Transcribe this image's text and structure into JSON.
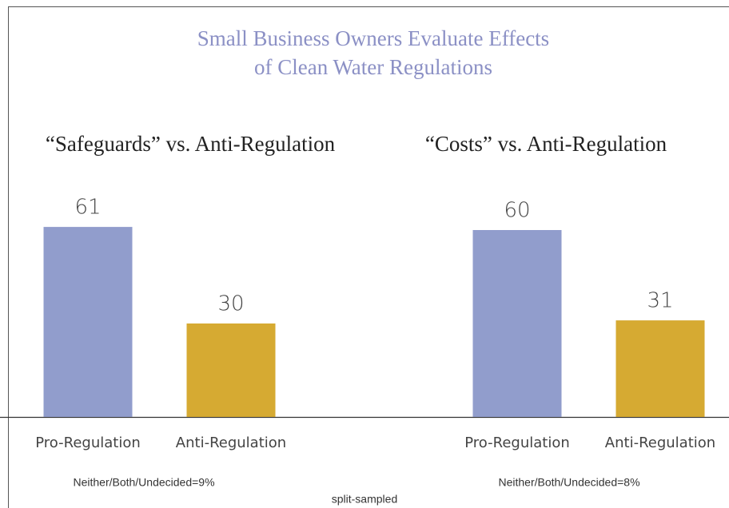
{
  "title": [
    "Small Business Owners Evaluate Effects",
    "of Clean Water Regulations"
  ],
  "footnote": "split-sampled",
  "chart_data": [
    {
      "type": "bar",
      "title": "“Safeguards” vs. Anti-Regulation",
      "categories": [
        "Pro-Regulation",
        "Anti-Regulation"
      ],
      "values": [
        61,
        30
      ],
      "colors": [
        "#919dcc",
        "#d6aa32"
      ],
      "ylim": [
        0,
        100
      ],
      "note": "Neither/Both/Undecided=9%"
    },
    {
      "type": "bar",
      "title": "“Costs” vs. Anti-Regulation",
      "categories": [
        "Pro-Regulation",
        "Anti-Regulation"
      ],
      "values": [
        60,
        31
      ],
      "colors": [
        "#919dcc",
        "#d6aa32"
      ],
      "ylim": [
        0,
        100
      ],
      "note": "Neither/Both/Undecided=8%"
    }
  ]
}
